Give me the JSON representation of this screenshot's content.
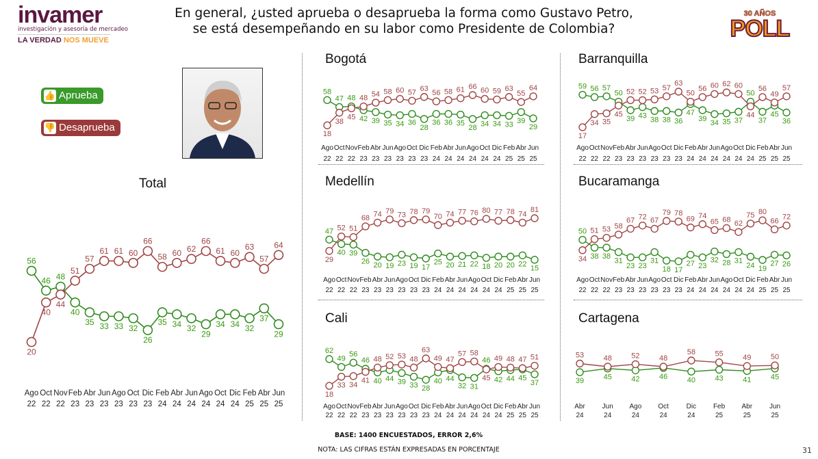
{
  "header": {
    "title_line1": "En general, ¿usted aprueba o desaprueba la forma como Gustavo Petro,",
    "title_line2": "se está desempeñando en su labor como Presidente de Colombia?",
    "logo_left": {
      "word": "invamer",
      "sub": "investigación y asesoría de mercadeo",
      "tag_a": "LA VERDAD",
      "tag_b": "NOS MUEVE"
    },
    "logo_right": {
      "top": "30 AÑOS",
      "word": "POLL"
    }
  },
  "legend": {
    "approve": "Aprueba",
    "disapprove": "Desaprueba",
    "approve_icon": "thumbs-up-icon",
    "disapprove_icon": "thumbs-down-icon"
  },
  "colors": {
    "approve": "#2e8b1e",
    "disapprove": "#a04545",
    "approve_label": "#3a9a10",
    "disapprove_label": "#a04545"
  },
  "footer": {
    "base": "BASE: 1400 ENCUESTADOS, ERROR 2,6%",
    "note": "NOTA: LAS CIFRAS ESTÁN EXPRESADAS EN PORCENTAJE",
    "page": "31"
  },
  "chart_data": [
    {
      "id": "total",
      "type": "line",
      "title": "Total",
      "categories": [
        [
          "Ago",
          "22"
        ],
        [
          "Oct",
          "22"
        ],
        [
          "Nov",
          "22"
        ],
        [
          "Feb",
          "23"
        ],
        [
          "Abr",
          "23"
        ],
        [
          "Jun",
          "23"
        ],
        [
          "Ago",
          "23"
        ],
        [
          "Oct",
          "23"
        ],
        [
          "Dic",
          "23"
        ],
        [
          "Feb",
          "24"
        ],
        [
          "Abr",
          "24"
        ],
        [
          "Jun",
          "24"
        ],
        [
          "Ago",
          "24"
        ],
        [
          "Oct",
          "24"
        ],
        [
          "Dic",
          "24"
        ],
        [
          "Feb",
          "25"
        ],
        [
          "Abr",
          "25"
        ],
        [
          "Jun",
          "25"
        ]
      ],
      "series": [
        {
          "name": "Aprueba",
          "values": [
            56,
            46,
            48,
            40,
            35,
            33,
            33,
            32,
            26,
            35,
            34,
            32,
            29,
            34,
            34,
            32,
            37,
            29
          ]
        },
        {
          "name": "Desaprueba",
          "values": [
            20,
            40,
            44,
            51,
            57,
            61,
            61,
            60,
            66,
            58,
            60,
            62,
            66,
            61,
            60,
            63,
            57,
            64
          ]
        }
      ]
    },
    {
      "id": "bogota",
      "type": "line",
      "title": "Bogotá",
      "categories": [
        [
          "Ago",
          "22"
        ],
        [
          "Oct",
          "22"
        ],
        [
          "Nov",
          "22"
        ],
        [
          "Feb",
          "23"
        ],
        [
          "Abr",
          "23"
        ],
        [
          "Jun",
          "23"
        ],
        [
          "Ago",
          "23"
        ],
        [
          "Oct",
          "23"
        ],
        [
          "Dic",
          "23"
        ],
        [
          "Feb",
          "24"
        ],
        [
          "Abr",
          "24"
        ],
        [
          "Jun",
          "24"
        ],
        [
          "Ago",
          "24"
        ],
        [
          "Oct",
          "24"
        ],
        [
          "Dic",
          "24"
        ],
        [
          "Feb",
          "25"
        ],
        [
          "Abr",
          "25"
        ],
        [
          "Jun",
          "25"
        ]
      ],
      "series": [
        {
          "name": "Aprueba",
          "values": [
            58,
            47,
            48,
            42,
            39,
            35,
            34,
            36,
            28,
            36,
            36,
            35,
            28,
            34,
            34,
            33,
            39,
            29
          ]
        },
        {
          "name": "Desaprueba",
          "values": [
            18,
            38,
            45,
            48,
            54,
            58,
            60,
            57,
            63,
            56,
            58,
            61,
            66,
            60,
            59,
            63,
            55,
            64
          ]
        }
      ]
    },
    {
      "id": "barranquilla",
      "type": "line",
      "title": "Barranquilla",
      "categories": [
        [
          "Ago",
          "22"
        ],
        [
          "Oct",
          "22"
        ],
        [
          "Nov",
          "22"
        ],
        [
          "Feb",
          "23"
        ],
        [
          "Abr",
          "23"
        ],
        [
          "Jun",
          "23"
        ],
        [
          "Ago",
          "23"
        ],
        [
          "Oct",
          "23"
        ],
        [
          "Dic",
          "23"
        ],
        [
          "Feb",
          "24"
        ],
        [
          "Abr",
          "24"
        ],
        [
          "Jun",
          "24"
        ],
        [
          "Ago",
          "24"
        ],
        [
          "Oct",
          "24"
        ],
        [
          "Dic",
          "24"
        ],
        [
          "Feb",
          "25"
        ],
        [
          "Abr",
          "25"
        ],
        [
          "Jun",
          "25"
        ]
      ],
      "series": [
        {
          "name": "Aprueba",
          "values": [
            59,
            56,
            57,
            50,
            39,
            43,
            38,
            38,
            36,
            47,
            39,
            34,
            35,
            37,
            50,
            37,
            45,
            36
          ]
        },
        {
          "name": "Desaprueba",
          "values": [
            17,
            34,
            35,
            45,
            52,
            52,
            53,
            57,
            63,
            50,
            56,
            60,
            62,
            60,
            44,
            56,
            49,
            57
          ]
        }
      ]
    },
    {
      "id": "medellin",
      "type": "line",
      "title": "Medellín",
      "categories": [
        [
          "Ago",
          "22"
        ],
        [
          "Oct",
          "22"
        ],
        [
          "Nov",
          "22"
        ],
        [
          "Feb",
          "23"
        ],
        [
          "Abr",
          "23"
        ],
        [
          "Jun",
          "23"
        ],
        [
          "Ago",
          "23"
        ],
        [
          "Oct",
          "23"
        ],
        [
          "Dic",
          "23"
        ],
        [
          "Feb",
          "24"
        ],
        [
          "Abr",
          "24"
        ],
        [
          "Jun",
          "24"
        ],
        [
          "Ago",
          "24"
        ],
        [
          "Oct",
          "24"
        ],
        [
          "Dic",
          "24"
        ],
        [
          "Feb",
          "25"
        ],
        [
          "Abr",
          "25"
        ],
        [
          "Jun",
          "25"
        ]
      ],
      "series": [
        {
          "name": "Aprueba",
          "values": [
            47,
            40,
            39,
            26,
            20,
            19,
            23,
            19,
            17,
            25,
            20,
            21,
            22,
            18,
            20,
            20,
            22,
            15
          ]
        },
        {
          "name": "Desaprueba",
          "values": [
            29,
            52,
            51,
            68,
            74,
            79,
            73,
            78,
            79,
            70,
            74,
            77,
            76,
            80,
            77,
            78,
            74,
            81
          ]
        }
      ]
    },
    {
      "id": "bucaramanga",
      "type": "line",
      "title": "Bucaramanga",
      "categories": [
        [
          "Ago",
          "22"
        ],
        [
          "Oct",
          "22"
        ],
        [
          "Nov",
          "22"
        ],
        [
          "Feb",
          "23"
        ],
        [
          "Abr",
          "23"
        ],
        [
          "Jun",
          "23"
        ],
        [
          "Ago",
          "23"
        ],
        [
          "Oct",
          "23"
        ],
        [
          "Dic",
          "23"
        ],
        [
          "Feb",
          "24"
        ],
        [
          "Abr",
          "24"
        ],
        [
          "Jun",
          "24"
        ],
        [
          "Ago",
          "24"
        ],
        [
          "Oct",
          "24"
        ],
        [
          "Dic",
          "24"
        ],
        [
          "Feb",
          "25"
        ],
        [
          "Abr",
          "25"
        ],
        [
          "Jun",
          "25"
        ]
      ],
      "series": [
        {
          "name": "Aprueba",
          "values": [
            50,
            38,
            38,
            31,
            23,
            23,
            31,
            18,
            17,
            27,
            23,
            32,
            28,
            31,
            24,
            19,
            27,
            26
          ]
        },
        {
          "name": "Desaprueba",
          "values": [
            34,
            51,
            53,
            58,
            67,
            72,
            67,
            79,
            78,
            69,
            74,
            65,
            68,
            62,
            75,
            80,
            66,
            72
          ]
        }
      ]
    },
    {
      "id": "cali",
      "type": "line",
      "title": "Cali",
      "categories": [
        [
          "Ago",
          "22"
        ],
        [
          "Oct",
          "22"
        ],
        [
          "Nov",
          "22"
        ],
        [
          "Feb",
          "23"
        ],
        [
          "Abr",
          "23"
        ],
        [
          "Jun",
          "23"
        ],
        [
          "Ago",
          "23"
        ],
        [
          "Oct",
          "23"
        ],
        [
          "Dic",
          "23"
        ],
        [
          "Feb",
          "24"
        ],
        [
          "Abr",
          "24"
        ],
        [
          "Jun",
          "24"
        ],
        [
          "Ago",
          "24"
        ],
        [
          "Oct",
          "24"
        ],
        [
          "Dic",
          "24"
        ],
        [
          "Feb",
          "25"
        ],
        [
          "Abr",
          "25"
        ],
        [
          "Jun",
          "25"
        ]
      ],
      "series": [
        {
          "name": "Aprueba",
          "values": [
            62,
            49,
            56,
            46,
            40,
            44,
            39,
            33,
            28,
            40,
            44,
            32,
            31,
            46,
            42,
            44,
            45,
            37
          ]
        },
        {
          "name": "Desaprueba",
          "values": [
            18,
            33,
            34,
            41,
            48,
            52,
            53,
            48,
            63,
            49,
            47,
            57,
            58,
            45,
            49,
            48,
            47,
            51
          ]
        }
      ]
    },
    {
      "id": "cartagena",
      "type": "line",
      "title": "Cartagena",
      "categories": [
        [
          "Abr",
          "24"
        ],
        [
          "Jun",
          "24"
        ],
        [
          "Ago",
          "24"
        ],
        [
          "Oct",
          "24"
        ],
        [
          "Dic",
          "24"
        ],
        [
          "Feb",
          "25"
        ],
        [
          "Abr",
          "25"
        ],
        [
          "Jun",
          "25"
        ]
      ],
      "series": [
        {
          "name": "Aprueba",
          "values": [
            39,
            45,
            42,
            46,
            40,
            43,
            41,
            45
          ]
        },
        {
          "name": "Desaprueba",
          "values": [
            53,
            48,
            52,
            48,
            58,
            55,
            49,
            50
          ]
        }
      ]
    }
  ]
}
